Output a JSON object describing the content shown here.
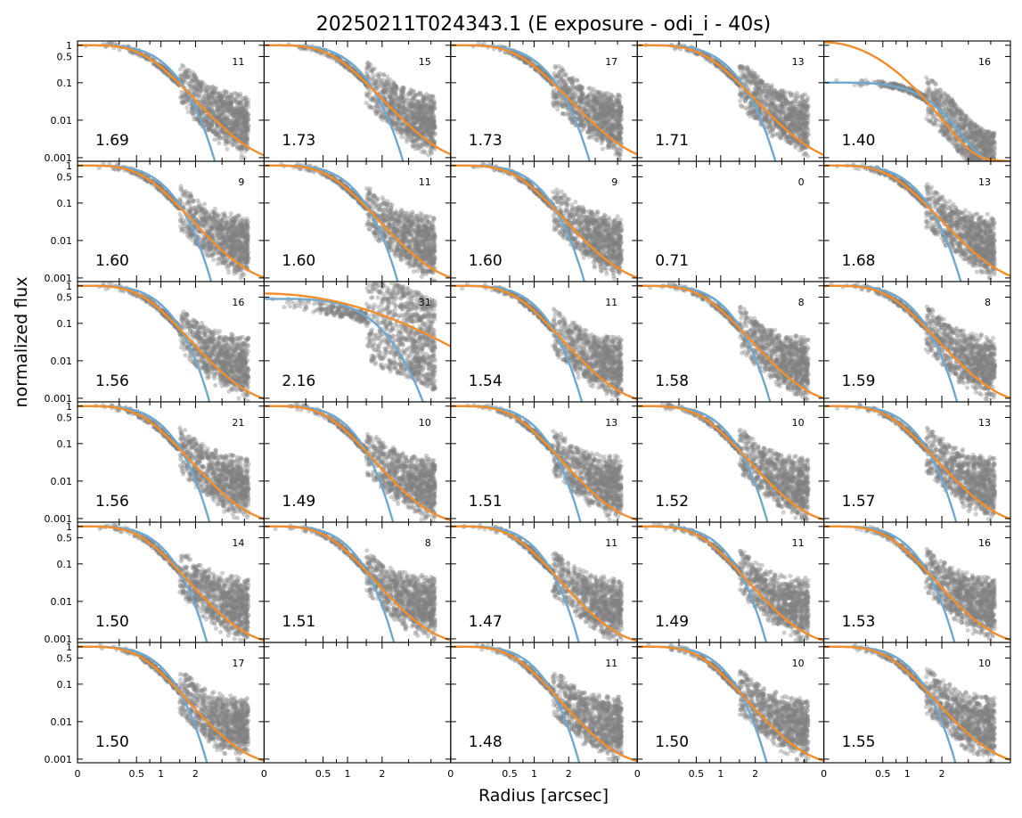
{
  "chart_data": {
    "type": "scatter",
    "title": "20250211T024343.1 (E exposure - odi_i - 40s)",
    "xlabel": "Radius [arcsec]",
    "ylabel": "normalized flux",
    "grid": false,
    "layout": {
      "rows": 6,
      "cols": 5
    },
    "x_scale": "sqrt",
    "y_scale": "log",
    "xlim": [
      0,
      5
    ],
    "ylim": [
      0.0008,
      1.3
    ],
    "x_ticks": [
      {
        "v": 0,
        "label": "0"
      },
      {
        "v": 0.5,
        "label": "0.5"
      },
      {
        "v": 1,
        "label": "1"
      },
      {
        "v": 2,
        "label": "2"
      }
    ],
    "y_ticks": [
      {
        "v": 1,
        "label": "1"
      },
      {
        "v": 0.5,
        "label": "0.5"
      },
      {
        "v": 0.1,
        "label": "0.1"
      },
      {
        "v": 0.01,
        "label": "0.01"
      },
      {
        "v": 0.001,
        "label": "0.001"
      }
    ],
    "series_colors": {
      "points": "#808080",
      "fit_orange": "#f28e2b",
      "fit_blue": "#6fa8cf"
    },
    "panels": [
      {
        "fwhm": "1.69",
        "count": "11",
        "fwhm_value": 1.69
      },
      {
        "fwhm": "1.73",
        "count": "15",
        "fwhm_value": 1.73
      },
      {
        "fwhm": "1.73",
        "count": "17",
        "fwhm_value": 1.73
      },
      {
        "fwhm": "1.71",
        "count": "13",
        "fwhm_value": 1.71
      },
      {
        "fwhm": "1.40",
        "count": "16",
        "fwhm_value": 1.4,
        "anomalous": true
      },
      {
        "fwhm": "1.60",
        "count": "9",
        "fwhm_value": 1.6
      },
      {
        "fwhm": "1.60",
        "count": "11",
        "fwhm_value": 1.6
      },
      {
        "fwhm": "1.60",
        "count": "9",
        "fwhm_value": 1.6
      },
      {
        "fwhm": "0.71",
        "count": "0",
        "fwhm_value": 0.71,
        "empty": true
      },
      {
        "fwhm": "1.68",
        "count": "13",
        "fwhm_value": 1.68
      },
      {
        "fwhm": "1.56",
        "count": "16",
        "fwhm_value": 1.56
      },
      {
        "fwhm": "2.16",
        "count": "31",
        "fwhm_value": 2.16,
        "wide": true
      },
      {
        "fwhm": "1.54",
        "count": "11",
        "fwhm_value": 1.54
      },
      {
        "fwhm": "1.58",
        "count": "8",
        "fwhm_value": 1.58
      },
      {
        "fwhm": "1.59",
        "count": "8",
        "fwhm_value": 1.59
      },
      {
        "fwhm": "1.56",
        "count": "21",
        "fwhm_value": 1.56
      },
      {
        "fwhm": "1.49",
        "count": "10",
        "fwhm_value": 1.49
      },
      {
        "fwhm": "1.51",
        "count": "13",
        "fwhm_value": 1.51
      },
      {
        "fwhm": "1.52",
        "count": "10",
        "fwhm_value": 1.52
      },
      {
        "fwhm": "1.57",
        "count": "13",
        "fwhm_value": 1.57
      },
      {
        "fwhm": "1.50",
        "count": "14",
        "fwhm_value": 1.5
      },
      {
        "fwhm": "1.51",
        "count": "8",
        "fwhm_value": 1.51
      },
      {
        "fwhm": "1.47",
        "count": "11",
        "fwhm_value": 1.47
      },
      {
        "fwhm": "1.49",
        "count": "11",
        "fwhm_value": 1.49
      },
      {
        "fwhm": "1.53",
        "count": "16",
        "fwhm_value": 1.53
      },
      {
        "fwhm": "1.50",
        "count": "17",
        "fwhm_value": 1.5
      },
      {
        "fwhm": "",
        "count": "",
        "blank": true
      },
      {
        "fwhm": "1.48",
        "count": "11",
        "fwhm_value": 1.48
      },
      {
        "fwhm": "1.50",
        "count": "10",
        "fwhm_value": 1.5
      },
      {
        "fwhm": "1.55",
        "count": "10",
        "fwhm_value": 1.55
      }
    ]
  }
}
